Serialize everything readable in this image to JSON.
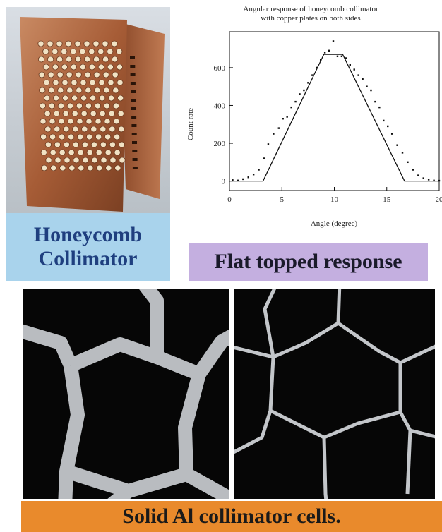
{
  "captions": {
    "photo": [
      "Honeycomb",
      "Collimator"
    ],
    "chart": "Flat topped response",
    "cells": "Solid Al collimator cells."
  },
  "colors": {
    "caption_blue": "#a9d3ec",
    "caption_purple": "#c4afe0",
    "caption_orange": "#e98a2c",
    "copper": "#b0653e"
  },
  "chart_data": {
    "type": "scatter",
    "title": [
      "Angular response of honeycomb collimator",
      "with copper plates on both sides"
    ],
    "xlabel": "Angle (degree)",
    "ylabel": "Count rate",
    "xlim": [
      0,
      20
    ],
    "ylim": [
      -50,
      790
    ],
    "xticks": [
      0,
      5,
      10,
      15,
      20
    ],
    "yticks": [
      0,
      200,
      400,
      600
    ],
    "grid": false,
    "series": [
      {
        "kind": "points",
        "x": [
          0.3,
          0.8,
          1.3,
          1.8,
          2.3,
          2.8,
          3.3,
          3.7,
          4.2,
          4.7,
          5.1,
          5.5,
          5.9,
          6.3,
          6.7,
          7.1,
          7.5,
          7.9,
          8.3,
          8.7,
          9.1,
          9.5,
          9.9,
          10.3,
          10.7,
          11.1,
          11.5,
          11.9,
          12.3,
          12.7,
          13.1,
          13.5,
          13.9,
          14.3,
          14.7,
          15.1,
          15.5,
          16.0,
          16.5,
          17.0,
          17.5,
          18.0,
          18.5,
          19.0,
          19.5,
          20.0
        ],
        "y": [
          5,
          3,
          10,
          20,
          35,
          60,
          120,
          195,
          250,
          280,
          330,
          340,
          390,
          420,
          460,
          480,
          520,
          560,
          600,
          640,
          680,
          690,
          740,
          660,
          660,
          650,
          615,
          590,
          560,
          540,
          500,
          480,
          420,
          390,
          320,
          290,
          250,
          190,
          150,
          100,
          60,
          30,
          15,
          8,
          3,
          2
        ]
      },
      {
        "kind": "line",
        "x": [
          0,
          3.2,
          9,
          10.8,
          16.7,
          20
        ],
        "y": [
          0,
          0,
          670,
          670,
          0,
          0
        ]
      }
    ]
  }
}
